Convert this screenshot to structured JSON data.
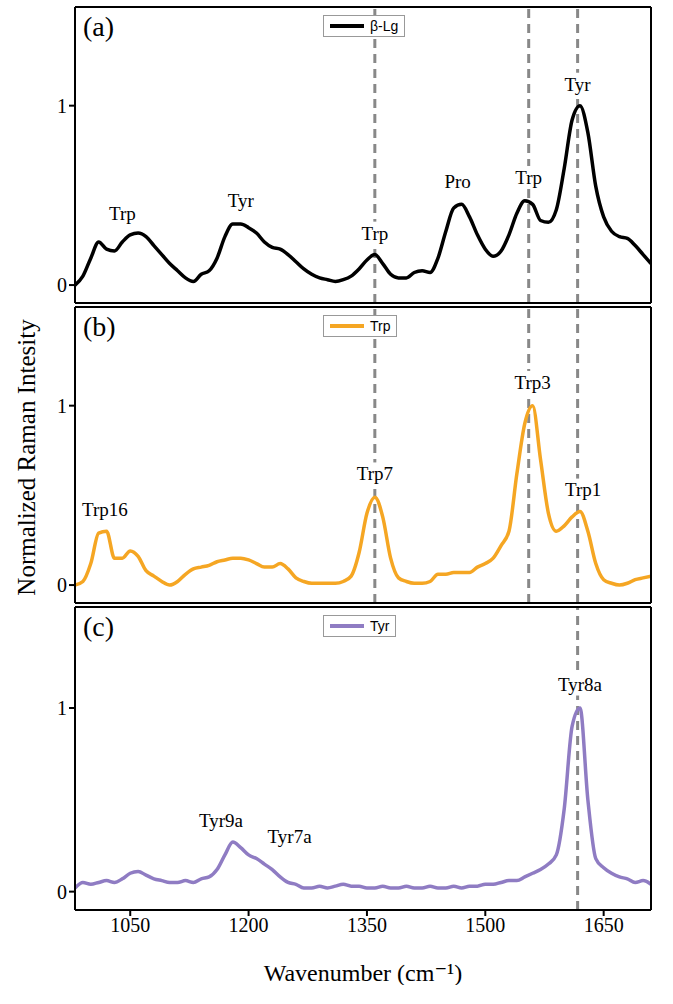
{
  "chart_data": [
    {
      "type": "line",
      "panel": "(a)",
      "legend": "top",
      "tick_labels": "y",
      "xlim": [
        980,
        1710
      ],
      "xticks": [
        1050,
        1200,
        1350,
        1500,
        1650
      ],
      "ylim": [
        -0.1,
        1.55
      ],
      "yticks": [
        0,
        1
      ],
      "vlines": [
        1360,
        1555,
        1617
      ],
      "x": [
        980,
        990,
        1000,
        1010,
        1020,
        1030,
        1040,
        1050,
        1060,
        1070,
        1080,
        1090,
        1100,
        1110,
        1120,
        1130,
        1140,
        1150,
        1160,
        1170,
        1180,
        1190,
        1200,
        1210,
        1220,
        1230,
        1240,
        1250,
        1260,
        1270,
        1280,
        1290,
        1300,
        1310,
        1320,
        1330,
        1340,
        1350,
        1360,
        1370,
        1380,
        1390,
        1400,
        1410,
        1420,
        1430,
        1440,
        1450,
        1460,
        1470,
        1480,
        1490,
        1500,
        1510,
        1520,
        1530,
        1540,
        1550,
        1560,
        1570,
        1580,
        1590,
        1600,
        1610,
        1620,
        1630,
        1640,
        1650,
        1660,
        1670,
        1680,
        1690,
        1700,
        1710
      ],
      "series": [
        {
          "name": "β-Lg",
          "color": "#000000",
          "line_style": "solid",
          "values": [
            0.0,
            0.05,
            0.15,
            0.24,
            0.2,
            0.19,
            0.24,
            0.28,
            0.29,
            0.27,
            0.22,
            0.17,
            0.12,
            0.08,
            0.04,
            0.02,
            0.06,
            0.08,
            0.15,
            0.27,
            0.34,
            0.34,
            0.32,
            0.29,
            0.24,
            0.21,
            0.2,
            0.17,
            0.13,
            0.09,
            0.06,
            0.04,
            0.03,
            0.02,
            0.03,
            0.05,
            0.09,
            0.14,
            0.17,
            0.12,
            0.06,
            0.04,
            0.04,
            0.07,
            0.08,
            0.07,
            0.15,
            0.3,
            0.43,
            0.45,
            0.38,
            0.28,
            0.2,
            0.16,
            0.19,
            0.28,
            0.4,
            0.47,
            0.45,
            0.36,
            0.35,
            0.42,
            0.65,
            0.92,
            1.0,
            0.85,
            0.55,
            0.38,
            0.3,
            0.27,
            0.26,
            0.22,
            0.17,
            0.12
          ]
        }
      ],
      "annotations": [
        {
          "text": "Trp",
          "x": 1040,
          "y": 0.4
        },
        {
          "text": "Tyr",
          "x": 1190,
          "y": 0.47
        },
        {
          "text": "Trp",
          "x": 1360,
          "y": 0.29
        },
        {
          "text": "Pro",
          "x": 1465,
          "y": 0.58
        },
        {
          "text": "Trp",
          "x": 1555,
          "y": 0.6
        },
        {
          "text": "Tyr",
          "x": 1617,
          "y": 1.12
        }
      ]
    },
    {
      "type": "line",
      "panel": "(b)",
      "legend": "top",
      "tick_labels": "y",
      "y_label": "Normalized Raman Intesity",
      "xlim": [
        980,
        1710
      ],
      "xticks": [
        1050,
        1200,
        1350,
        1500,
        1650
      ],
      "ylim": [
        -0.1,
        1.55
      ],
      "yticks": [
        0,
        1
      ],
      "vlines": [
        1360,
        1555,
        1617
      ],
      "x": [
        980,
        990,
        1000,
        1010,
        1020,
        1030,
        1040,
        1050,
        1060,
        1070,
        1080,
        1090,
        1100,
        1110,
        1120,
        1130,
        1140,
        1150,
        1160,
        1170,
        1180,
        1190,
        1200,
        1210,
        1220,
        1230,
        1240,
        1250,
        1260,
        1270,
        1280,
        1290,
        1300,
        1310,
        1320,
        1330,
        1340,
        1350,
        1360,
        1370,
        1380,
        1390,
        1400,
        1410,
        1420,
        1430,
        1440,
        1450,
        1460,
        1470,
        1480,
        1490,
        1500,
        1510,
        1520,
        1530,
        1540,
        1550,
        1560,
        1570,
        1580,
        1590,
        1600,
        1610,
        1620,
        1630,
        1640,
        1650,
        1660,
        1670,
        1680,
        1690,
        1700,
        1710
      ],
      "series": [
        {
          "name": "Trp",
          "color": "#f5a623",
          "line_style": "solid",
          "values": [
            0.0,
            0.02,
            0.12,
            0.29,
            0.3,
            0.15,
            0.15,
            0.19,
            0.16,
            0.08,
            0.05,
            0.02,
            0.0,
            0.02,
            0.06,
            0.09,
            0.1,
            0.11,
            0.13,
            0.14,
            0.15,
            0.15,
            0.14,
            0.12,
            0.1,
            0.1,
            0.12,
            0.09,
            0.04,
            0.02,
            0.01,
            0.01,
            0.01,
            0.01,
            0.02,
            0.05,
            0.18,
            0.4,
            0.49,
            0.38,
            0.15,
            0.04,
            0.02,
            0.01,
            0.01,
            0.02,
            0.06,
            0.06,
            0.07,
            0.07,
            0.07,
            0.1,
            0.12,
            0.15,
            0.22,
            0.3,
            0.62,
            0.9,
            1.0,
            0.7,
            0.4,
            0.3,
            0.33,
            0.38,
            0.41,
            0.3,
            0.12,
            0.03,
            0.01,
            0.0,
            0.01,
            0.03,
            0.04,
            0.05
          ]
        }
      ],
      "annotations": [
        {
          "text": "Trp16",
          "x": 1018,
          "y": 0.42
        },
        {
          "text": "Trp7",
          "x": 1360,
          "y": 0.62
        },
        {
          "text": "Trp3",
          "x": 1560,
          "y": 1.13
        },
        {
          "text": "Trp1",
          "x": 1624,
          "y": 0.53
        }
      ]
    },
    {
      "type": "line",
      "panel": "(c)",
      "legend": "top",
      "x_label": "Wavenumber (cm⁻¹)",
      "xlim": [
        980,
        1710
      ],
      "xticks": [
        1050,
        1200,
        1350,
        1500,
        1650
      ],
      "ylim": [
        -0.1,
        1.55
      ],
      "yticks": [
        0,
        1
      ],
      "vlines": [
        1617
      ],
      "x": [
        980,
        990,
        1000,
        1010,
        1020,
        1030,
        1040,
        1050,
        1060,
        1070,
        1080,
        1090,
        1100,
        1110,
        1120,
        1130,
        1140,
        1150,
        1160,
        1170,
        1180,
        1190,
        1200,
        1210,
        1220,
        1230,
        1240,
        1250,
        1260,
        1270,
        1280,
        1290,
        1300,
        1310,
        1320,
        1330,
        1340,
        1350,
        1360,
        1370,
        1380,
        1390,
        1400,
        1410,
        1420,
        1430,
        1440,
        1450,
        1460,
        1470,
        1480,
        1490,
        1500,
        1510,
        1520,
        1530,
        1540,
        1550,
        1560,
        1570,
        1580,
        1590,
        1600,
        1610,
        1620,
        1630,
        1640,
        1650,
        1660,
        1670,
        1680,
        1690,
        1700,
        1710
      ],
      "series": [
        {
          "name": "Tyr",
          "color": "#8f7cc3",
          "line_style": "solid",
          "values": [
            0.02,
            0.05,
            0.04,
            0.05,
            0.06,
            0.05,
            0.07,
            0.1,
            0.11,
            0.09,
            0.07,
            0.06,
            0.05,
            0.05,
            0.06,
            0.05,
            0.07,
            0.08,
            0.12,
            0.2,
            0.27,
            0.24,
            0.2,
            0.18,
            0.15,
            0.12,
            0.08,
            0.05,
            0.04,
            0.02,
            0.02,
            0.03,
            0.02,
            0.03,
            0.04,
            0.03,
            0.03,
            0.02,
            0.02,
            0.03,
            0.02,
            0.02,
            0.03,
            0.02,
            0.02,
            0.03,
            0.02,
            0.02,
            0.03,
            0.02,
            0.03,
            0.03,
            0.04,
            0.04,
            0.05,
            0.06,
            0.06,
            0.08,
            0.1,
            0.12,
            0.15,
            0.2,
            0.45,
            0.9,
            1.0,
            0.5,
            0.18,
            0.13,
            0.1,
            0.08,
            0.07,
            0.05,
            0.06,
            0.04
          ]
        }
      ],
      "annotations": [
        {
          "text": "Tyr9a",
          "x": 1165,
          "y": 0.39
        },
        {
          "text": "Tyr7a",
          "x": 1252,
          "y": 0.3
        },
        {
          "text": "Tyr8a",
          "x": 1620,
          "y": 1.13
        }
      ]
    }
  ]
}
